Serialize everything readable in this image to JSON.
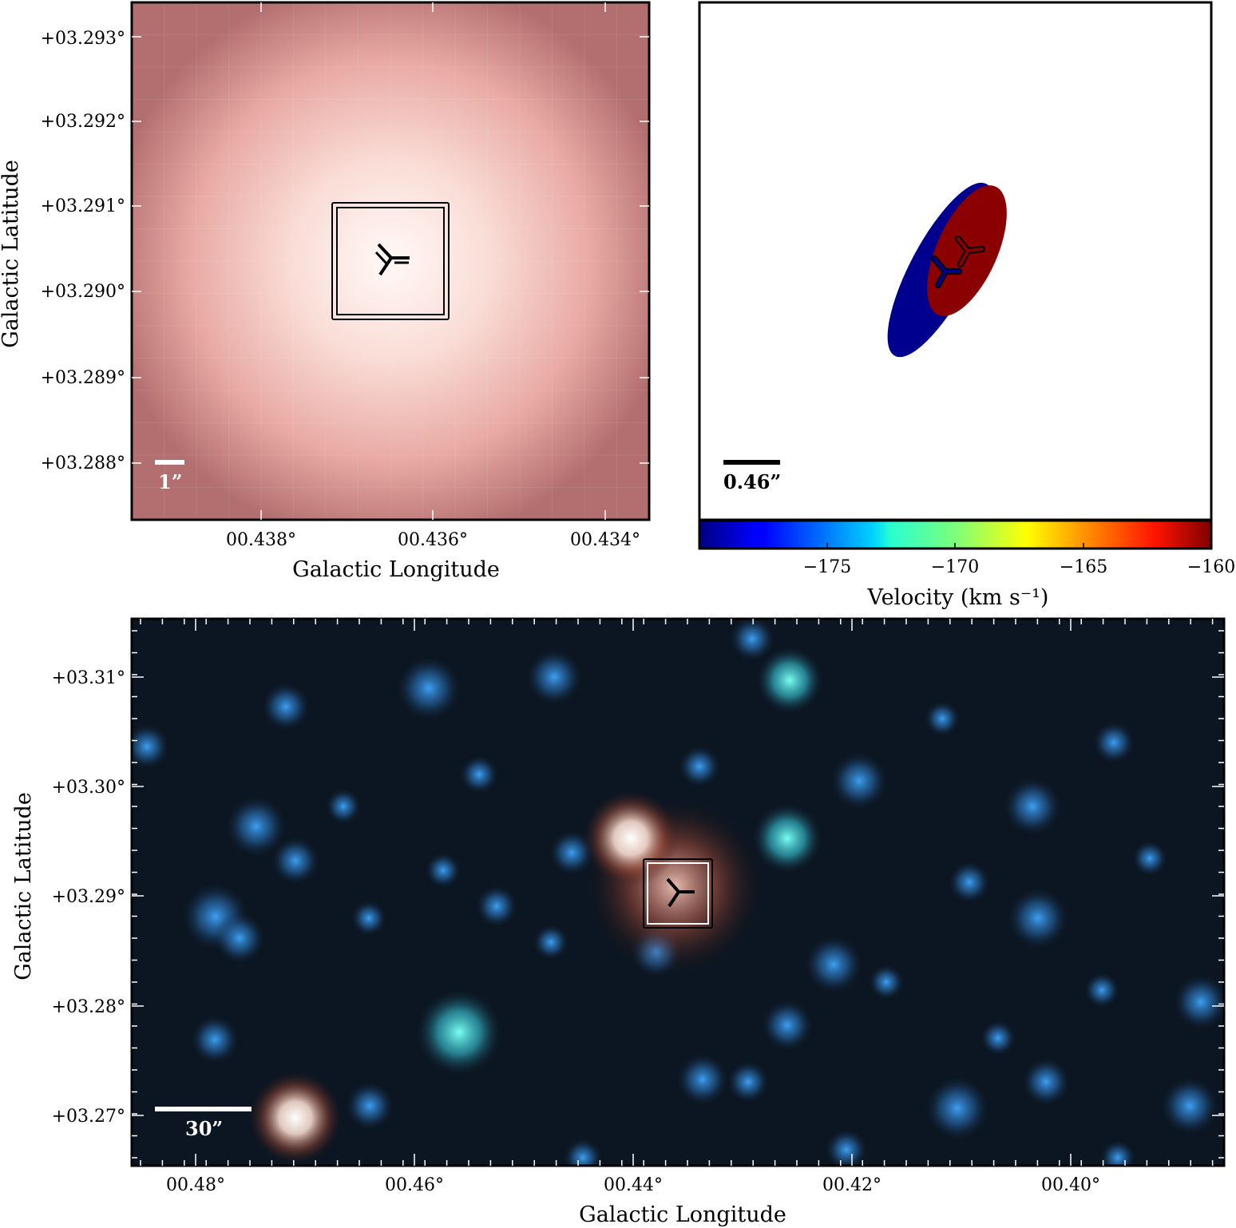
{
  "panel_a": {
    "xlabel": "Galactic Longitude",
    "ylabel": "Galactic Latitude",
    "xticks": [
      "00.438°",
      "00.436°",
      "00.434°"
    ],
    "yticks": [
      "+03.293°",
      "+03.292°",
      "+03.291°",
      "+03.290°",
      "+03.289°",
      "+03.288°"
    ],
    "scalebar_label": "1”"
  },
  "panel_b": {
    "scalebar_label": "0.46”",
    "colorbar_label": "Velocity (km s⁻¹)",
    "colorbar_ticks": [
      "−175",
      "−170",
      "−165",
      "−160"
    ],
    "colorbar_range": [
      -180,
      -160
    ],
    "ellipses": [
      {
        "name": "blue-component",
        "color": "#00008f"
      },
      {
        "name": "red-component",
        "color": "#8b0000"
      }
    ]
  },
  "panel_c": {
    "xlabel": "Galactic Longitude",
    "ylabel": "Galactic Latitude",
    "xticks": [
      "00.48°",
      "00.46°",
      "00.44°",
      "00.42°",
      "00.40°"
    ],
    "yticks": [
      "+03.31°",
      "+03.30°",
      "+03.29°",
      "+03.28°",
      "+03.27°"
    ],
    "scalebar_label": "30”"
  }
}
